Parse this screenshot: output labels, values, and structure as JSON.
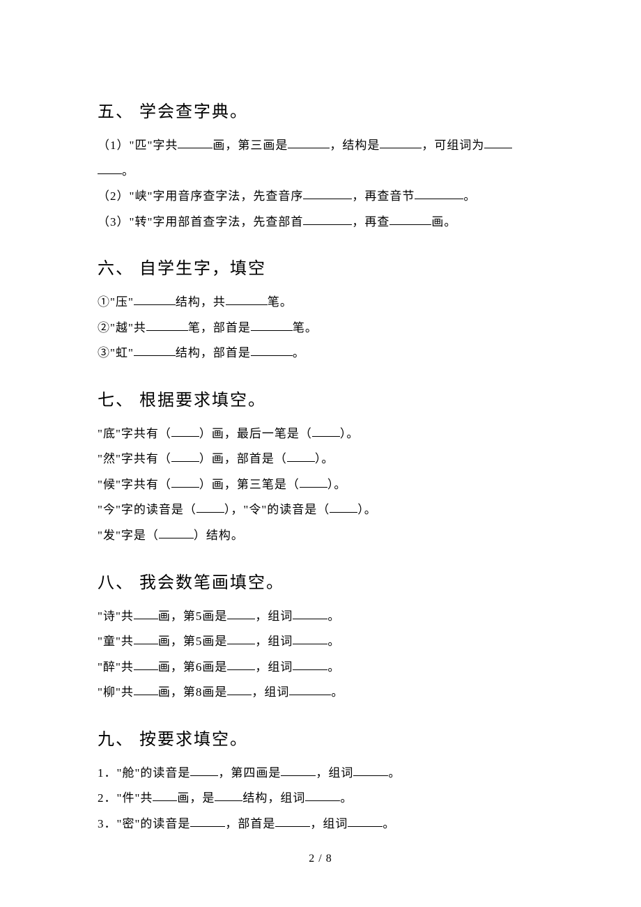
{
  "page": {
    "footer": "2 / 8",
    "background_color": "#ffffff",
    "text_color": "#000000",
    "body_fontsize": 17,
    "title_fontsize": 24
  },
  "section5": {
    "title": "五、 学会查字典。",
    "items": [
      {
        "num": "（1）",
        "pre1": "\"匹\"字共",
        "mid1": "画，第三画是",
        "mid2": "，结构是",
        "mid3": "，可组词为",
        "tail": "。"
      },
      {
        "num": "（2）",
        "pre1": "\"峡\"字用音序查字法，先查音序",
        "mid1": "，再查音节",
        "tail": "。"
      },
      {
        "num": "（3）",
        "pre1": "\"转\"字用部首查字法，先查部首",
        "mid1": "，再查",
        "tail": "画。"
      }
    ]
  },
  "section6": {
    "title": "六、 自学生字，填空",
    "items": [
      {
        "num": "①",
        "p1": "\"压\"",
        "m1": "结构，共",
        "t": "笔。"
      },
      {
        "num": "②",
        "p1": "\"越\"共",
        "m1": "笔，部首是",
        "t": "笔。"
      },
      {
        "num": "③",
        "p1": "\"虹\"",
        "m1": "结构，部首是",
        "t": "。"
      }
    ]
  },
  "section7": {
    "title": "七、 根据要求填空。",
    "items": [
      {
        "p1": "\"底\"字共有（",
        "m1": "）画，最后一笔是（",
        "t": "）。"
      },
      {
        "p1": "\"然\"字共有（",
        "m1": "）画，部首是（",
        "t": "）。"
      },
      {
        "p1": "\"候\"字共有（",
        "m1": "）画，第三笔是（",
        "t": "）。"
      },
      {
        "p1": "\"今\"字的读音是（",
        "m1": "），\"令\"的读音是（",
        "t": "）。"
      },
      {
        "p1": "\"发\"字是（",
        "t": "）结构。"
      }
    ]
  },
  "section8": {
    "title": "八、 我会数笔画填空。",
    "items": [
      {
        "p1": "\"诗\"共",
        "m1": "画，第5画是",
        "m2": "，组词",
        "t": "。"
      },
      {
        "p1": "\"童\"共",
        "m1": "画，第5画是",
        "m2": "，组词",
        "t": "。"
      },
      {
        "p1": "\"醉\"共",
        "m1": "画，第6画是",
        "m2": "，组词",
        "t": "。"
      },
      {
        "p1": "\"柳\"共",
        "m1": "画，第8画是",
        "m2": "，组词",
        "t": "。"
      }
    ]
  },
  "section9": {
    "title": "九、 按要求填空。",
    "items": [
      {
        "num": "1．",
        "p1": "\"舱\"的读音是",
        "m1": "，第四画是",
        "m2": "，组词",
        "t": "。"
      },
      {
        "num": "2．",
        "p1": "\"件\"共",
        "m1": "画，是",
        "m2": "结构，组词",
        "t": "。"
      },
      {
        "num": "3．",
        "p1": "\"密\"的读音是",
        "m1": "，部首是",
        "m2": "，组词",
        "t": "。"
      }
    ]
  }
}
